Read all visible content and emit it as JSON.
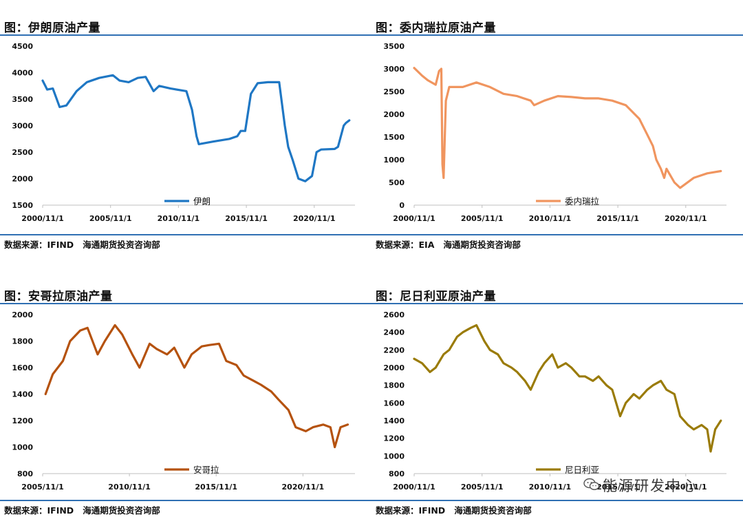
{
  "colors": {
    "rule": "#2f6fb3"
  },
  "watermark": {
    "text": "能源研发中心",
    "icon": "wechat-icon"
  },
  "panels": [
    {
      "title": "图：伊朗原油产量",
      "source": "数据来源：IFIND   海通期货投资咨询部",
      "chart_data": {
        "type": "line",
        "title": "图：伊朗原油产量",
        "xlabel": "",
        "ylabel": "",
        "ylim": [
          1500,
          4500
        ],
        "yticks": [
          "4500",
          "4000",
          "3500",
          "3000",
          "2500",
          "2000",
          "1500"
        ],
        "xticks": [
          "2000/11/1",
          "2005/11/1",
          "2010/11/1",
          "2015/11/1",
          "2020/11/1"
        ],
        "xlim": [
          "2000/11",
          "2023/11"
        ],
        "legend": "bottom-center",
        "series": [
          {
            "name": "伊朗",
            "color": "#1f77c4",
            "x": [
              "2000/11",
              "2001/03",
              "2001/08",
              "2002/02",
              "2002/08",
              "2003/05",
              "2004/02",
              "2005/01",
              "2006/01",
              "2006/07",
              "2007/03",
              "2007/11",
              "2008/06",
              "2009/01",
              "2009/06",
              "2010/04",
              "2011/06",
              "2011/11",
              "2012/03",
              "2012/05",
              "2013/06",
              "2014/08",
              "2015/03",
              "2015/06",
              "2015/10",
              "2016/03",
              "2016/09",
              "2017/06",
              "2018/04",
              "2018/09",
              "2018/12",
              "2019/04",
              "2019/09",
              "2020/03",
              "2020/09",
              "2021/01",
              "2021/05",
              "2022/05",
              "2022/08",
              "2023/01",
              "2023/03",
              "2023/06"
            ],
            "values": [
              3850,
              3680,
              3700,
              3350,
              3380,
              3650,
              3820,
              3900,
              3950,
              3850,
              3820,
              3900,
              3920,
              3650,
              3750,
              3700,
              3650,
              3300,
              2800,
              2650,
              2700,
              2750,
              2800,
              2900,
              2900,
              3600,
              3800,
              3820,
              3820,
              3000,
              2600,
              2350,
              2000,
              1950,
              2050,
              2500,
              2550,
              2560,
              2600,
              3000,
              3050,
              3100
            ]
          }
        ]
      }
    },
    {
      "title": "图：委内瑞拉原油产量",
      "source": "数据来源：EIA   海通期货投资咨询部",
      "chart_data": {
        "type": "line",
        "title": "图：委内瑞拉原油产量",
        "xlabel": "",
        "ylabel": "",
        "ylim": [
          0,
          3500
        ],
        "yticks": [
          "3500",
          "3000",
          "2500",
          "2000",
          "1500",
          "1000",
          "500",
          "0"
        ],
        "xticks": [
          "2000/11/1",
          "2005/11/1",
          "2010/11/1",
          "2015/11/1",
          "2020/11/1"
        ],
        "xlim": [
          "2000/11",
          "2023/11"
        ],
        "legend": "bottom-center",
        "series": [
          {
            "name": "委内瑞拉",
            "color": "#f0955f",
            "x": [
              "2000/11",
              "2001/06",
              "2001/11",
              "2002/06",
              "2002/09",
              "2002/11",
              "2002/12",
              "2003/01",
              "2003/03",
              "2003/06",
              "2004/06",
              "2005/06",
              "2006/06",
              "2007/06",
              "2008/06",
              "2009/06",
              "2009/09",
              "2010/06",
              "2011/06",
              "2012/06",
              "2013/06",
              "2014/06",
              "2015/06",
              "2016/06",
              "2017/06",
              "2018/01",
              "2018/06",
              "2018/09",
              "2019/01",
              "2019/04",
              "2019/06",
              "2020/01",
              "2020/06",
              "2021/06",
              "2022/06",
              "2023/06"
            ],
            "values": [
              3020,
              2850,
              2750,
              2650,
              2950,
              3000,
              900,
              600,
              2300,
              2600,
              2600,
              2700,
              2600,
              2450,
              2400,
              2300,
              2200,
              2300,
              2400,
              2380,
              2350,
              2350,
              2300,
              2200,
              1900,
              1550,
              1300,
              1000,
              800,
              600,
              800,
              500,
              380,
              600,
              700,
              750
            ]
          }
        ]
      }
    },
    {
      "title": "图：安哥拉原油产量",
      "source": "数据来源：IFIND   海通期货投资咨询部",
      "chart_data": {
        "type": "line",
        "title": "图：安哥拉原油产量",
        "xlabel": "",
        "ylabel": "",
        "ylim": [
          800,
          2000
        ],
        "yticks": [
          "2000",
          "1800",
          "1600",
          "1400",
          "1200",
          "1000",
          "800"
        ],
        "xticks": [
          "2005/11/1",
          "2010/11/1",
          "2015/11/1",
          "2020/11/1"
        ],
        "xlim": [
          "2005/11",
          "2023/11"
        ],
        "legend": "bottom-center",
        "series": [
          {
            "name": "安哥拉",
            "color": "#b5520e",
            "x": [
              "2006/01",
              "2006/06",
              "2007/01",
              "2007/06",
              "2008/01",
              "2008/06",
              "2009/01",
              "2009/06",
              "2010/01",
              "2010/06",
              "2011/01",
              "2011/06",
              "2012/01",
              "2012/06",
              "2013/01",
              "2013/06",
              "2014/01",
              "2014/06",
              "2015/01",
              "2015/06",
              "2016/01",
              "2016/06",
              "2017/01",
              "2017/06",
              "2018/01",
              "2018/06",
              "2019/01",
              "2019/06",
              "2020/01",
              "2020/06",
              "2021/01",
              "2021/06",
              "2022/01",
              "2022/06",
              "2022/09",
              "2023/01",
              "2023/06"
            ],
            "values": [
              1400,
              1550,
              1650,
              1800,
              1880,
              1900,
              1700,
              1800,
              1920,
              1850,
              1700,
              1600,
              1780,
              1740,
              1700,
              1750,
              1600,
              1700,
              1760,
              1770,
              1780,
              1650,
              1620,
              1540,
              1500,
              1470,
              1420,
              1360,
              1280,
              1150,
              1120,
              1150,
              1170,
              1150,
              1000,
              1150,
              1170
            ]
          }
        ]
      }
    },
    {
      "title": "图：尼日利亚原油产量",
      "source": "数据来源：IFIND   海通期货投资咨询部",
      "chart_data": {
        "type": "line",
        "title": "图：尼日利亚原油产量",
        "xlabel": "",
        "ylabel": "",
        "ylim": [
          800,
          2600
        ],
        "yticks": [
          "2600",
          "2400",
          "2200",
          "2000",
          "1800",
          "1600",
          "1400",
          "1200",
          "1000",
          "800"
        ],
        "xticks": [
          "2000/11/1",
          "2005/11/1",
          "2010/11/1",
          "2015/11/1",
          "2020/11/1"
        ],
        "xlim": [
          "2000/11",
          "2023/11"
        ],
        "legend": "bottom-center",
        "series": [
          {
            "name": "尼日利亚",
            "color": "#9a7b08",
            "x": [
              "2000/11",
              "2001/06",
              "2002/01",
              "2002/06",
              "2003/01",
              "2003/06",
              "2004/01",
              "2004/06",
              "2005/01",
              "2005/06",
              "2006/01",
              "2006/06",
              "2007/01",
              "2007/06",
              "2008/01",
              "2008/06",
              "2009/01",
              "2009/06",
              "2010/01",
              "2010/06",
              "2011/01",
              "2011/06",
              "2012/01",
              "2012/06",
              "2013/01",
              "2013/06",
              "2014/01",
              "2014/06",
              "2015/01",
              "2015/06",
              "2016/01",
              "2016/06",
              "2017/01",
              "2017/06",
              "2018/01",
              "2018/06",
              "2019/01",
              "2019/06",
              "2020/01",
              "2020/06",
              "2021/01",
              "2021/06",
              "2022/01",
              "2022/06",
              "2022/09",
              "2023/01",
              "2023/06"
            ],
            "values": [
              2100,
              2050,
              1950,
              2000,
              2150,
              2200,
              2350,
              2400,
              2450,
              2480,
              2300,
              2200,
              2150,
              2050,
              2000,
              1950,
              1850,
              1750,
              1950,
              2050,
              2150,
              2000,
              2050,
              2000,
              1900,
              1900,
              1850,
              1900,
              1800,
              1750,
              1450,
              1600,
              1700,
              1650,
              1750,
              1800,
              1850,
              1750,
              1700,
              1450,
              1350,
              1300,
              1350,
              1300,
              1050,
              1300,
              1400
            ]
          }
        ]
      }
    }
  ]
}
